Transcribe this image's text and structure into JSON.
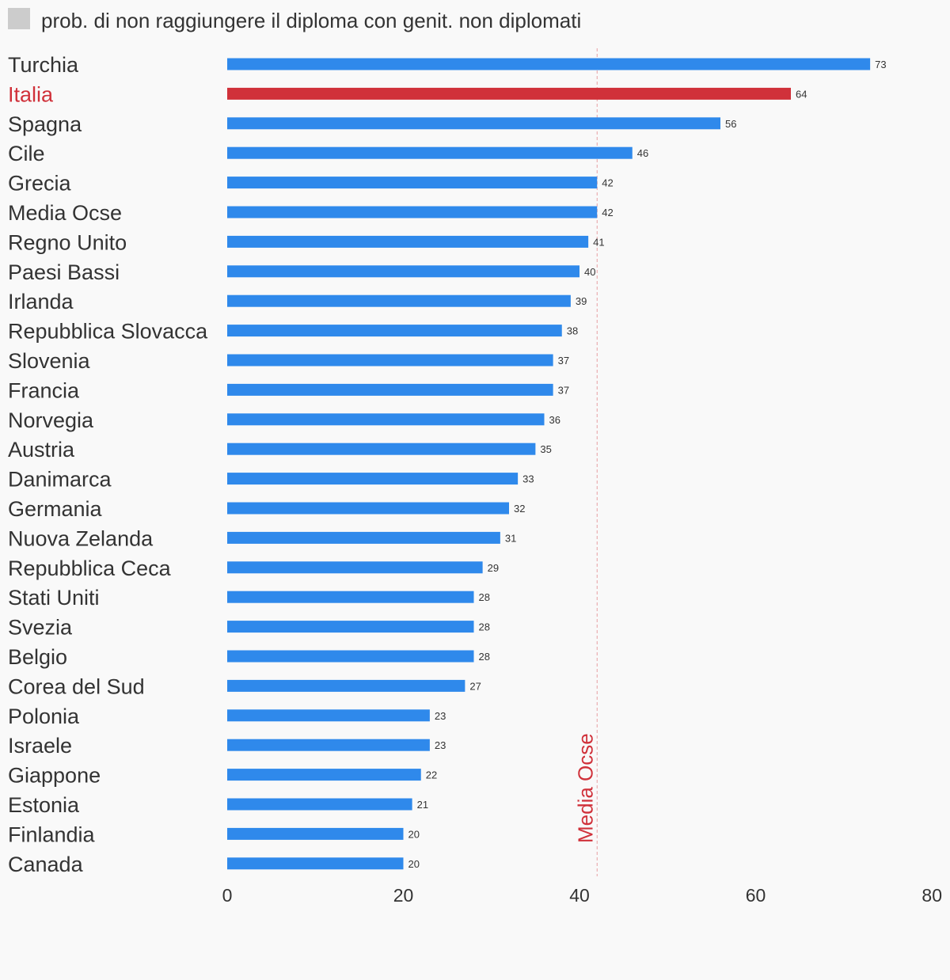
{
  "chart_data": {
    "type": "bar",
    "orientation": "horizontal",
    "legend": {
      "label": "prob. di non raggiungere il diploma con genit. non diplomati",
      "color": "#cccccc",
      "placement": "top-left"
    },
    "categories": [
      "Turchia",
      "Italia",
      "Spagna",
      "Cile",
      "Grecia",
      "Media Ocse",
      "Regno Unito",
      "Paesi Bassi",
      "Irlanda",
      "Repubblica Slovacca",
      "Slovenia",
      "Francia",
      "Norvegia",
      "Austria",
      "Danimarca",
      "Germania",
      "Nuova Zelanda",
      "Repubblica Ceca",
      "Stati Uniti",
      "Svezia",
      "Belgio",
      "Corea del Sud",
      "Polonia",
      "Israele",
      "Giappone",
      "Estonia",
      "Finlandia",
      "Canada"
    ],
    "values": [
      73,
      64,
      56,
      46,
      42,
      42,
      41,
      40,
      39,
      38,
      37,
      37,
      36,
      35,
      33,
      32,
      31,
      29,
      28,
      28,
      28,
      27,
      23,
      23,
      22,
      21,
      20,
      20
    ],
    "value_labels": [
      "73",
      "64",
      "56",
      "46",
      "42",
      "42",
      "41",
      "40",
      "39",
      "38",
      "37",
      "37",
      "36",
      "35",
      "33",
      "32",
      "31",
      "29",
      "28",
      "28",
      "28",
      "27",
      "23",
      "23",
      "22",
      "21",
      "20",
      "20"
    ],
    "highlight": {
      "category": "Italia",
      "color": "#d0313a"
    },
    "bar_color": "#2f89eb",
    "xlim": [
      0,
      80
    ],
    "x_ticks": [
      0,
      20,
      40,
      60,
      80
    ],
    "x_tick_labels": [
      "0",
      "20",
      "40",
      "60",
      "80"
    ],
    "reference_line": {
      "value": 42,
      "label": "Media Ocse",
      "color": "#d0313a",
      "style": "dashed"
    },
    "grid": false,
    "title": "",
    "xlabel": "",
    "ylabel": ""
  }
}
